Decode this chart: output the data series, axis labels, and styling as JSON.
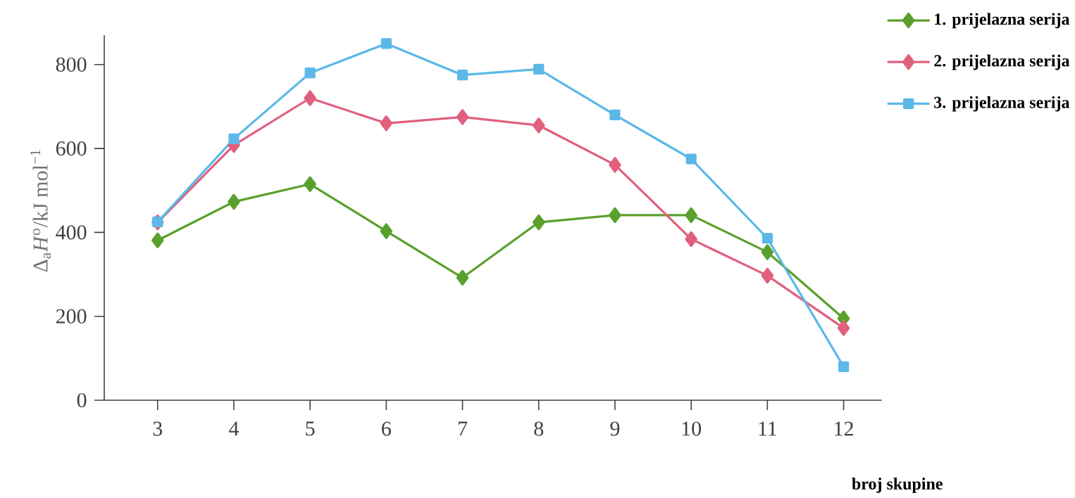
{
  "chart_data": {
    "type": "line",
    "xlabel": "broj skupine",
    "ylabel": "Δ$_{a}$*H*$^{o}$/kJ mol$^{−1}$",
    "x": [
      3,
      4,
      5,
      6,
      7,
      8,
      9,
      10,
      11,
      12
    ],
    "series": [
      {
        "name": "1. prijelazna serija",
        "color": "#5aa02c",
        "marker": "diamond",
        "values": [
          381,
          473,
          515,
          403,
          292,
          424,
          441,
          441,
          353,
          195
        ]
      },
      {
        "name": "2. prijelazna serija",
        "color": "#e0607e",
        "marker": "diamond",
        "values": [
          424,
          608,
          720,
          660,
          675,
          655,
          561,
          384,
          297,
          172
        ]
      },
      {
        "name": "3. prijelazna serija",
        "color": "#5bb8e8",
        "marker": "square",
        "values": [
          425,
          623,
          780,
          850,
          775,
          789,
          680,
          575,
          386,
          80
        ]
      }
    ],
    "xlim": [
      2.3,
      12.5
    ],
    "ylim": [
      0,
      870
    ],
    "xticks": [
      3,
      4,
      5,
      6,
      7,
      8,
      9,
      10,
      11,
      12
    ],
    "yticks": [
      0,
      200,
      400,
      600,
      800
    ],
    "grid": false,
    "legend": "top right",
    "line_style": "solid"
  }
}
